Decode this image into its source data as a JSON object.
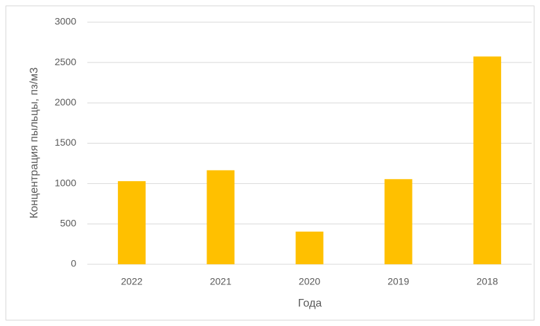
{
  "chart_data": {
    "type": "bar",
    "x_label": "Года",
    "y_label": "Концентрация пыльцы, пз/м3",
    "categories": [
      "2022",
      "2021",
      "2020",
      "2019",
      "2018"
    ],
    "values": [
      1030,
      1165,
      405,
      1055,
      2575
    ],
    "color": "#ffc000",
    "ylim": [
      0,
      3000
    ],
    "yticks": [
      0,
      500,
      1000,
      1500,
      2000,
      2500,
      3000
    ],
    "grid": true
  }
}
